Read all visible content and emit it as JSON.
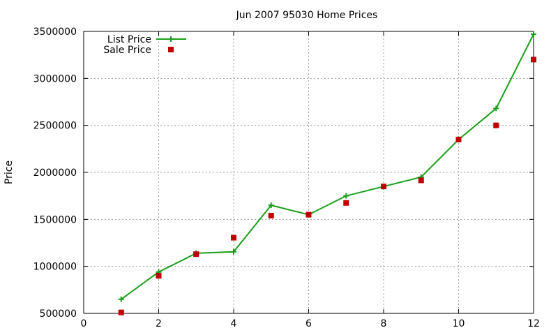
{
  "chart_data": {
    "type": "line",
    "title": "Jun 2007 95030 Home Prices",
    "xlabel": "",
    "ylabel": "Price",
    "xlim": [
      0,
      12
    ],
    "ylim": [
      500000,
      3500000
    ],
    "x_ticks": [
      0,
      2,
      4,
      6,
      8,
      10,
      12
    ],
    "y_ticks": [
      500000,
      1000000,
      1500000,
      2000000,
      2500000,
      3000000,
      3500000
    ],
    "grid": true,
    "legend_position": "top-left",
    "x": [
      1,
      2,
      3,
      4,
      5,
      6,
      7,
      8,
      9,
      10,
      11,
      12
    ],
    "series": [
      {
        "name": "List Price",
        "style": "line-with-plus-markers",
        "color": "#1a9e1a",
        "values": [
          650000,
          940000,
          1140000,
          1155000,
          1650000,
          1550000,
          1750000,
          1850000,
          1950000,
          2350000,
          2680000,
          3470000
        ]
      },
      {
        "name": "Sale Price",
        "style": "square-markers",
        "color": "#c00000",
        "values": [
          510000,
          900000,
          1130000,
          1305000,
          1540000,
          1550000,
          1675000,
          1850000,
          1915000,
          2350000,
          2500000,
          3200000
        ]
      }
    ]
  }
}
